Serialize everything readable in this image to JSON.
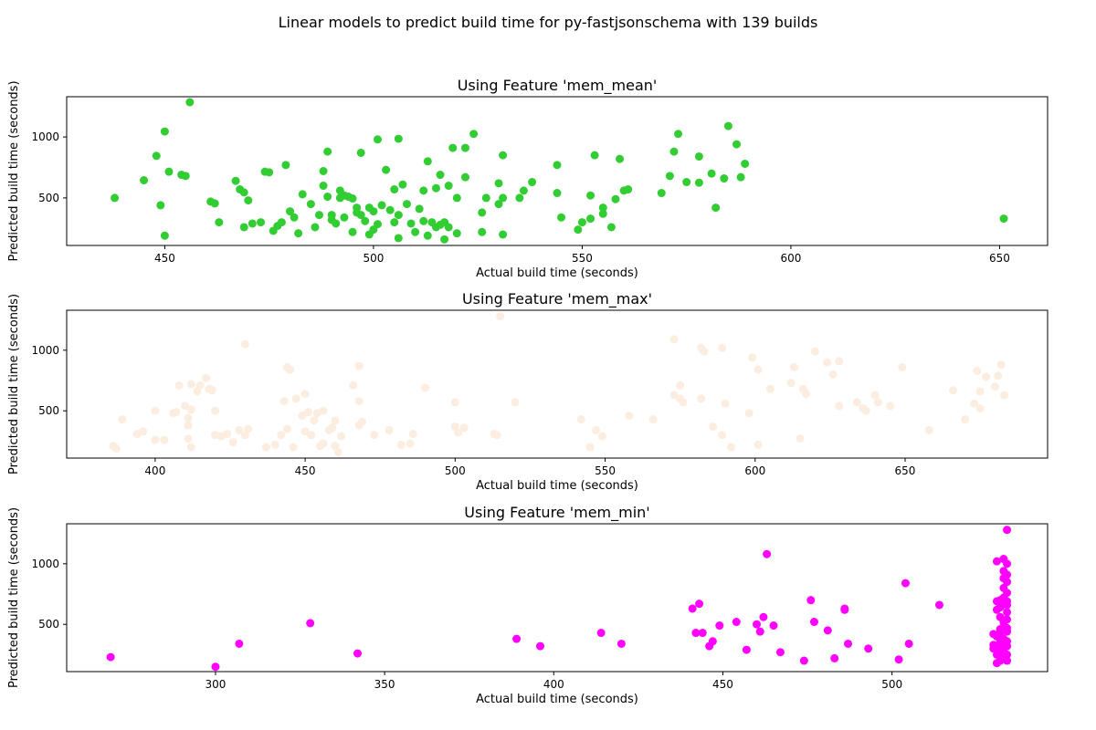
{
  "figure": {
    "title": "Linear models to predict build time for py-fastjsonschema with 139 builds"
  },
  "chart_data": [
    {
      "type": "scatter",
      "title": "Using Feature 'mem_mean'",
      "xlabel": "Actual build time (seconds)",
      "ylabel": "Predicted build time (seconds)",
      "color": "#32CD32",
      "xlim": [
        426.5,
        661.5
      ],
      "ylim": [
        110,
        1330
      ],
      "xticks": [
        450,
        500,
        550,
        600,
        650
      ],
      "yticks": [
        500,
        1000
      ],
      "points": [
        [
          438,
          500
        ],
        [
          445,
          645
        ],
        [
          448,
          845
        ],
        [
          449,
          440
        ],
        [
          450,
          1045
        ],
        [
          450,
          190
        ],
        [
          451,
          715
        ],
        [
          454,
          690
        ],
        [
          455,
          680
        ],
        [
          456,
          1285
        ],
        [
          461,
          470
        ],
        [
          462,
          455
        ],
        [
          463,
          300
        ],
        [
          467,
          640
        ],
        [
          468,
          570
        ],
        [
          469,
          545
        ],
        [
          469,
          260
        ],
        [
          470,
          480
        ],
        [
          471,
          290
        ],
        [
          473,
          300
        ],
        [
          474,
          715
        ],
        [
          475,
          710
        ],
        [
          476,
          230
        ],
        [
          477,
          270
        ],
        [
          478,
          300
        ],
        [
          479,
          770
        ],
        [
          480,
          390
        ],
        [
          481,
          340
        ],
        [
          482,
          210
        ],
        [
          483,
          530
        ],
        [
          485,
          450
        ],
        [
          486,
          260
        ],
        [
          487,
          360
        ],
        [
          488,
          600
        ],
        [
          488,
          720
        ],
        [
          489,
          880
        ],
        [
          489,
          510
        ],
        [
          490,
          360
        ],
        [
          490,
          320
        ],
        [
          491,
          290
        ],
        [
          492,
          500
        ],
        [
          492,
          560
        ],
        [
          493,
          340
        ],
        [
          493,
          520
        ],
        [
          494,
          510
        ],
        [
          495,
          495
        ],
        [
          495,
          220
        ],
        [
          496,
          420
        ],
        [
          496,
          380
        ],
        [
          497,
          360
        ],
        [
          497,
          870
        ],
        [
          498,
          310
        ],
        [
          499,
          420
        ],
        [
          499,
          200
        ],
        [
          500,
          390
        ],
        [
          500,
          240
        ],
        [
          501,
          980
        ],
        [
          501,
          285
        ],
        [
          502,
          440
        ],
        [
          503,
          730
        ],
        [
          504,
          400
        ],
        [
          505,
          570
        ],
        [
          505,
          300
        ],
        [
          506,
          360
        ],
        [
          506,
          170
        ],
        [
          506,
          985
        ],
        [
          507,
          610
        ],
        [
          508,
          450
        ],
        [
          509,
          290
        ],
        [
          510,
          220
        ],
        [
          511,
          410
        ],
        [
          512,
          560
        ],
        [
          512,
          310
        ],
        [
          513,
          190
        ],
        [
          513,
          800
        ],
        [
          514,
          300
        ],
        [
          515,
          580
        ],
        [
          515,
          260
        ],
        [
          516,
          690
        ],
        [
          516,
          280
        ],
        [
          517,
          300
        ],
        [
          517,
          160
        ],
        [
          518,
          600
        ],
        [
          518,
          260
        ],
        [
          519,
          910
        ],
        [
          520,
          500
        ],
        [
          520,
          210
        ],
        [
          522,
          670
        ],
        [
          522,
          910
        ],
        [
          524,
          1025
        ],
        [
          526,
          220
        ],
        [
          526,
          380
        ],
        [
          527,
          500
        ],
        [
          530,
          620
        ],
        [
          530,
          450
        ],
        [
          531,
          500
        ],
        [
          531,
          850
        ],
        [
          531,
          200
        ],
        [
          535,
          500
        ],
        [
          536,
          560
        ],
        [
          538,
          630
        ],
        [
          544,
          770
        ],
        [
          544,
          540
        ],
        [
          545,
          340
        ],
        [
          549,
          240
        ],
        [
          550,
          300
        ],
        [
          552,
          520
        ],
        [
          552,
          330
        ],
        [
          553,
          850
        ],
        [
          555,
          420
        ],
        [
          555,
          370
        ],
        [
          557,
          260
        ],
        [
          558,
          490
        ],
        [
          559,
          820
        ],
        [
          560,
          560
        ],
        [
          561,
          570
        ],
        [
          569,
          540
        ],
        [
          571,
          680
        ],
        [
          572,
          880
        ],
        [
          573,
          1025
        ],
        [
          575,
          630
        ],
        [
          578,
          840
        ],
        [
          578,
          625
        ],
        [
          581,
          700
        ],
        [
          582,
          420
        ],
        [
          584,
          660
        ],
        [
          585,
          1090
        ],
        [
          587,
          940
        ],
        [
          588,
          670
        ],
        [
          589,
          780
        ],
        [
          651,
          330
        ]
      ]
    },
    {
      "type": "scatter",
      "title": "Using Feature 'mem_max'",
      "xlabel": "Actual build time (seconds)",
      "ylabel": "Predicted build time (seconds)",
      "color": "#FBEDE0",
      "xlim": [
        370.5,
        697.5
      ],
      "ylim": [
        110,
        1330
      ],
      "xticks": [
        400,
        450,
        500,
        550,
        600,
        650
      ],
      "yticks": [
        500,
        1000
      ],
      "points": [
        [
          386,
          210
        ],
        [
          387,
          190
        ],
        [
          389,
          430
        ],
        [
          394,
          310
        ],
        [
          396,
          330
        ],
        [
          400,
          500
        ],
        [
          400,
          260
        ],
        [
          403,
          260
        ],
        [
          406,
          480
        ],
        [
          407,
          490
        ],
        [
          408,
          710
        ],
        [
          410,
          540
        ],
        [
          411,
          440
        ],
        [
          411,
          380
        ],
        [
          411,
          270
        ],
        [
          412,
          720
        ],
        [
          412,
          510
        ],
        [
          412,
          200
        ],
        [
          414,
          660
        ],
        [
          415,
          710
        ],
        [
          417,
          770
        ],
        [
          418,
          680
        ],
        [
          419,
          670
        ],
        [
          420,
          300
        ],
        [
          420,
          500
        ],
        [
          422,
          290
        ],
        [
          424,
          310
        ],
        [
          426,
          240
        ],
        [
          428,
          340
        ],
        [
          430,
          1050
        ],
        [
          430,
          300
        ],
        [
          431,
          350
        ],
        [
          437,
          200
        ],
        [
          440,
          220
        ],
        [
          442,
          300
        ],
        [
          443,
          580
        ],
        [
          444,
          350
        ],
        [
          444,
          860
        ],
        [
          445,
          840
        ],
        [
          446,
          200
        ],
        [
          447,
          600
        ],
        [
          449,
          460
        ],
        [
          450,
          330
        ],
        [
          450,
          640
        ],
        [
          451,
          490
        ],
        [
          452,
          300
        ],
        [
          453,
          420
        ],
        [
          454,
          480
        ],
        [
          455,
          210
        ],
        [
          456,
          500
        ],
        [
          456,
          230
        ],
        [
          458,
          340
        ],
        [
          459,
          360
        ],
        [
          460,
          420
        ],
        [
          460,
          210
        ],
        [
          461,
          160
        ],
        [
          462,
          290
        ],
        [
          466,
          710
        ],
        [
          468,
          870
        ],
        [
          468,
          580
        ],
        [
          468,
          380
        ],
        [
          469,
          410
        ],
        [
          473,
          300
        ],
        [
          478,
          340
        ],
        [
          482,
          220
        ],
        [
          485,
          230
        ],
        [
          486,
          310
        ],
        [
          490,
          690
        ],
        [
          500,
          370
        ],
        [
          500,
          570
        ],
        [
          501,
          320
        ],
        [
          503,
          360
        ],
        [
          513,
          310
        ],
        [
          514,
          300
        ],
        [
          515,
          1280
        ],
        [
          520,
          570
        ],
        [
          542,
          430
        ],
        [
          545,
          200
        ],
        [
          547,
          340
        ],
        [
          549,
          290
        ],
        [
          558,
          460
        ],
        [
          566,
          430
        ],
        [
          573,
          1090
        ],
        [
          573,
          630
        ],
        [
          575,
          600
        ],
        [
          575,
          710
        ],
        [
          576,
          570
        ],
        [
          582,
          1020
        ],
        [
          582,
          600
        ],
        [
          583,
          990
        ],
        [
          586,
          370
        ],
        [
          589,
          300
        ],
        [
          589,
          1020
        ],
        [
          590,
          560
        ],
        [
          592,
          200
        ],
        [
          598,
          480
        ],
        [
          599,
          940
        ],
        [
          601,
          840
        ],
        [
          601,
          220
        ],
        [
          605,
          680
        ],
        [
          612,
          730
        ],
        [
          613,
          860
        ],
        [
          615,
          270
        ],
        [
          616,
          680
        ],
        [
          617,
          640
        ],
        [
          620,
          990
        ],
        [
          624,
          900
        ],
        [
          626,
          800
        ],
        [
          628,
          910
        ],
        [
          628,
          540
        ],
        [
          634,
          570
        ],
        [
          636,
          520
        ],
        [
          637,
          500
        ],
        [
          640,
          630
        ],
        [
          641,
          570
        ],
        [
          645,
          540
        ],
        [
          649,
          860
        ],
        [
          658,
          340
        ],
        [
          666,
          670
        ],
        [
          670,
          430
        ],
        [
          673,
          560
        ],
        [
          674,
          830
        ],
        [
          675,
          660
        ],
        [
          675,
          520
        ],
        [
          677,
          780
        ],
        [
          680,
          700
        ],
        [
          681,
          790
        ],
        [
          683,
          630
        ],
        [
          682,
          880
        ]
      ]
    },
    {
      "type": "scatter",
      "title": "Using Feature 'mem_min'",
      "xlabel": "Actual build time (seconds)",
      "ylabel": "Predicted build time (seconds)",
      "color": "#FF00FF",
      "xlim": [
        256,
        546
      ],
      "ylim": [
        110,
        1330
      ],
      "xticks": [
        300,
        350,
        400,
        450,
        500
      ],
      "yticks": [
        500,
        1000
      ],
      "points": [
        [
          269,
          230
        ],
        [
          300,
          150
        ],
        [
          307,
          340
        ],
        [
          328,
          510
        ],
        [
          342,
          260
        ],
        [
          389,
          380
        ],
        [
          396,
          320
        ],
        [
          414,
          430
        ],
        [
          420,
          340
        ],
        [
          441,
          630
        ],
        [
          442,
          430
        ],
        [
          443,
          670
        ],
        [
          444,
          430
        ],
        [
          446,
          320
        ],
        [
          447,
          360
        ],
        [
          449,
          490
        ],
        [
          454,
          520
        ],
        [
          457,
          290
        ],
        [
          460,
          500
        ],
        [
          461,
          440
        ],
        [
          462,
          560
        ],
        [
          463,
          1080
        ],
        [
          465,
          490
        ],
        [
          467,
          270
        ],
        [
          474,
          200
        ],
        [
          476,
          700
        ],
        [
          477,
          520
        ],
        [
          481,
          450
        ],
        [
          483,
          220
        ],
        [
          486,
          620
        ],
        [
          486,
          630
        ],
        [
          487,
          340
        ],
        [
          493,
          300
        ],
        [
          502,
          210
        ],
        [
          504,
          840
        ],
        [
          505,
          340
        ],
        [
          514,
          660
        ],
        [
          530,
          330
        ],
        [
          530,
          420
        ],
        [
          530,
          300
        ],
        [
          531,
          690
        ],
        [
          531,
          250
        ],
        [
          531,
          180
        ],
        [
          531,
          1020
        ],
        [
          531,
          400
        ],
        [
          531,
          620
        ],
        [
          532,
          680
        ],
        [
          532,
          560
        ],
        [
          532,
          320
        ],
        [
          532,
          200
        ],
        [
          532,
          460
        ],
        [
          532,
          270
        ],
        [
          532,
          700
        ],
        [
          532,
          350
        ],
        [
          532,
          640
        ],
        [
          532,
          430
        ],
        [
          532,
          290
        ],
        [
          533,
          1040
        ],
        [
          533,
          940
        ],
        [
          533,
          880
        ],
        [
          533,
          800
        ],
        [
          533,
          720
        ],
        [
          533,
          520
        ],
        [
          533,
          480
        ],
        [
          533,
          380
        ],
        [
          533,
          230
        ],
        [
          533,
          300
        ],
        [
          534,
          1280
        ],
        [
          534,
          1000
        ],
        [
          534,
          850
        ],
        [
          534,
          760
        ],
        [
          534,
          660
        ],
        [
          534,
          600
        ],
        [
          534,
          540
        ],
        [
          534,
          440
        ],
        [
          534,
          360
        ],
        [
          534,
          250
        ],
        [
          534,
          200
        ],
        [
          534,
          320
        ],
        [
          534,
          470
        ],
        [
          534,
          690
        ],
        [
          534,
          910
        ]
      ]
    }
  ]
}
